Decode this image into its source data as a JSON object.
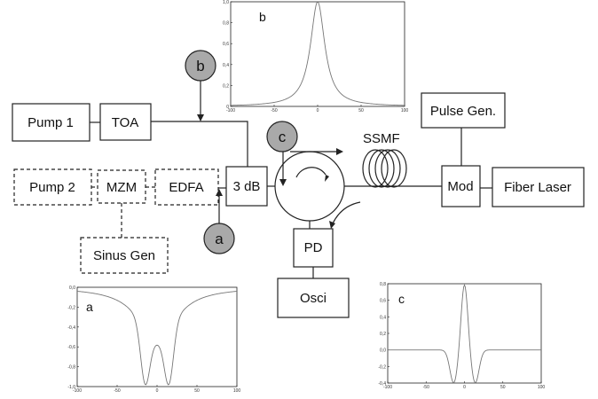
{
  "components": {
    "pump1": "Pump 1",
    "toa": "TOA",
    "pump2": "Pump 2",
    "mzm": "MZM",
    "edfa": "EDFA",
    "sinus_gen": "Sinus Gen",
    "coupler": "3 dB",
    "pd": "PD",
    "osci": "Osci",
    "ssmf": "SSMF",
    "mod": "Mod",
    "pulse_gen": "Pulse Gen.",
    "fiber_laser": "Fiber Laser"
  },
  "nodes": {
    "a": "a",
    "b": "b",
    "c": "c"
  },
  "chart_data": [
    {
      "id": "b",
      "type": "line",
      "title": "b",
      "xlim": [
        -100,
        100
      ],
      "ylim": [
        0,
        1.0
      ],
      "xticks": [
        "-100",
        "-50",
        "0",
        "50",
        "100"
      ],
      "yticks": [
        "0",
        "0,2",
        "0,4",
        "0,6",
        "0,8",
        "1,0"
      ],
      "shape": "lorentzian-peak",
      "center": 0,
      "peak": 1.0,
      "halfwidth": 10
    },
    {
      "id": "a",
      "type": "line",
      "title": "a",
      "xlim": [
        -100,
        100
      ],
      "ylim": [
        -1.0,
        0.0
      ],
      "xticks": [
        "-100",
        "-50",
        "0",
        "50",
        "100"
      ],
      "yticks": [
        "0,0",
        "-0,2",
        "-0,4",
        "-0,6",
        "-0,8",
        "-1,0"
      ],
      "shape": "double-dip",
      "dip_positions": [
        -15,
        15
      ],
      "dip_depth": -1.0,
      "center_value": -0.55
    },
    {
      "id": "c",
      "type": "line",
      "title": "c",
      "xlim": [
        -100,
        100
      ],
      "ylim": [
        -0.4,
        0.8
      ],
      "xticks": [
        "-100",
        "-50",
        "0",
        "50",
        "100"
      ],
      "yticks": [
        "0,8",
        "0,6",
        "0,4",
        "0,2",
        "0,0",
        "-0,2",
        "-0,4"
      ],
      "shape": "center-peak-side-dips",
      "baseline": 0.0,
      "peak": 0.8,
      "dip_depth": -0.4
    }
  ]
}
